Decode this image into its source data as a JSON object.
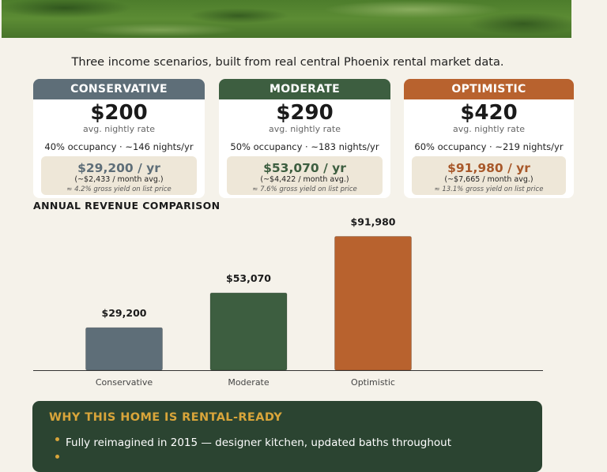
{
  "intro": "Three income scenarios, built from real central Phoenix rental market data.",
  "scenarios": [
    {
      "name": "CONSERVATIVE",
      "color": "#5e6e78",
      "accent": "#5e6e78",
      "rate": "$200",
      "rate_label": "avg. nightly rate",
      "occupancy": "40% occupancy  ·  ~146 nights/yr",
      "annual": "$29,200 / yr",
      "monthly": "(~$2,433 / month avg.)",
      "yield": "≈ 4.2% gross yield on list price"
    },
    {
      "name": "MODERATE",
      "color": "#3d5e40",
      "accent": "#3d5e40",
      "rate": "$290",
      "rate_label": "avg. nightly rate",
      "occupancy": "50% occupancy  ·  ~183 nights/yr",
      "annual": "$53,070 / yr",
      "monthly": "(~$4,422 / month avg.)",
      "yield": "≈ 7.6% gross yield on list price"
    },
    {
      "name": "OPTIMISTIC",
      "color": "#b8622e",
      "accent": "#a8582a",
      "rate": "$420",
      "rate_label": "avg. nightly rate",
      "occupancy": "60% occupancy  ·  ~219 nights/yr",
      "annual": "$91,980 / yr",
      "monthly": "(~$7,665 / month avg.)",
      "yield": "≈ 13.1% gross yield on list price"
    }
  ],
  "chart_title": "ANNUAL REVENUE COMPARISON",
  "chart_data": {
    "type": "bar",
    "categories": [
      "Conservative",
      "Moderate",
      "Optimistic"
    ],
    "values": [
      29200,
      53070,
      91980
    ],
    "value_labels": [
      "$29,200",
      "$53,070",
      "$91,980"
    ],
    "colors": [
      "#5e6e78",
      "#3d5e40",
      "#b8622e"
    ],
    "title": "ANNUAL REVENUE COMPARISON",
    "xlabel": "",
    "ylabel": "",
    "ylim": [
      0,
      102000
    ],
    "grid": false,
    "legend": "none"
  },
  "why": {
    "title": "WHY THIS HOME IS RENTAL-READY",
    "items": [
      "Fully reimagined in 2015 — designer kitchen, updated baths throughout"
    ]
  }
}
